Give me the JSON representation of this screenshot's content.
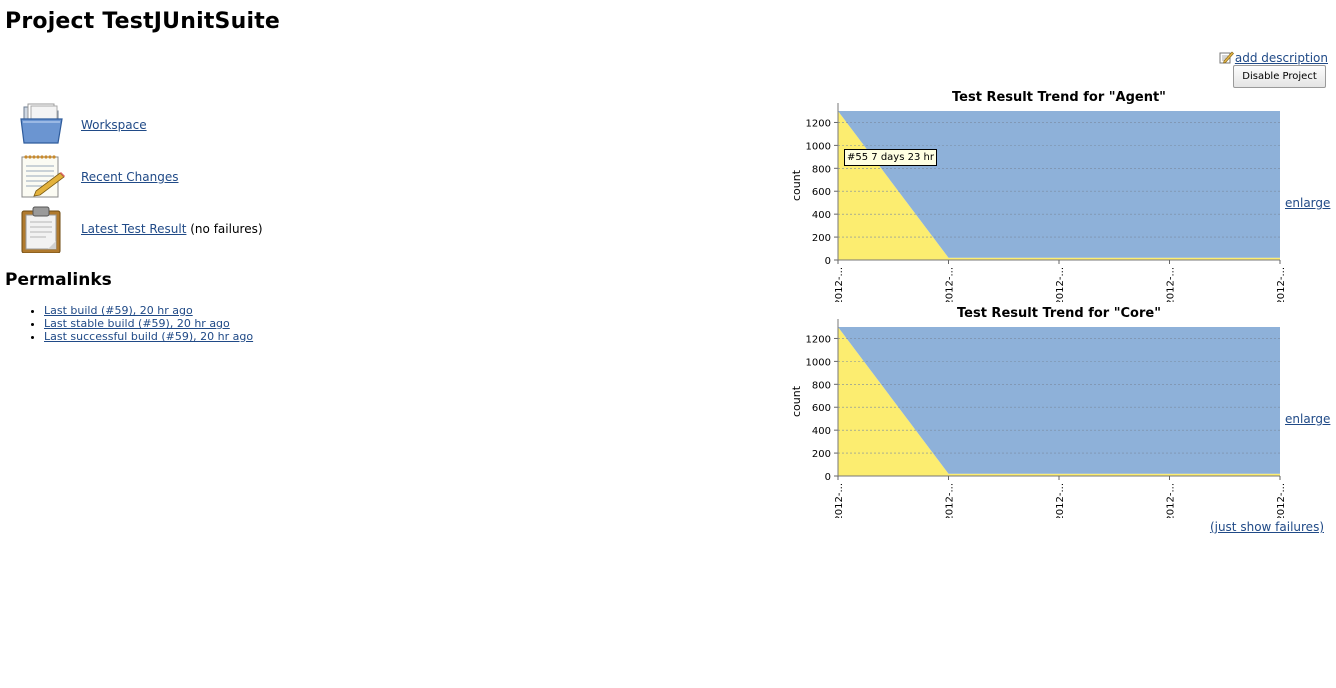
{
  "page": {
    "title": "Project TestJUnitSuite"
  },
  "top_actions": {
    "add_description_label": "add description",
    "disable_button_label": "Disable Project"
  },
  "side_links": [
    {
      "label": "Workspace",
      "icon": "folder-icon",
      "suffix": ""
    },
    {
      "label": "Recent Changes",
      "icon": "notepad-icon",
      "suffix": ""
    },
    {
      "label": "Latest Test Result",
      "icon": "clipboard-icon",
      "suffix": "(no failures)"
    }
  ],
  "permalinks": {
    "heading": "Permalinks",
    "items": [
      {
        "label": "Last build (#59), 20 hr ago"
      },
      {
        "label": "Last stable build (#59), 20 hr ago"
      },
      {
        "label": "Last successful build (#59), 20 hr ago"
      }
    ]
  },
  "colors": {
    "link": "#204a87",
    "pass_area": "#8eb1d9",
    "skip_area": "#fced70"
  },
  "charts": {
    "enlarge_label": "enlarge",
    "just_show_failures_label": "(just show failures)",
    "tooltip": "#55 7 days 23 hr"
  },
  "chart_data": [
    {
      "type": "area",
      "title": "Test Result Trend for \"Agent\"",
      "xlabel": "",
      "ylabel": "count",
      "ylim": [
        0,
        1300
      ],
      "yticks": [
        0,
        200,
        400,
        600,
        800,
        1000,
        1200
      ],
      "x_tick_labels": [
        "2012-...",
        "2012-...",
        "2012-...",
        "2012-...",
        "2012-..."
      ],
      "x_positions": [
        0,
        1,
        2,
        3,
        4
      ],
      "grid": true,
      "series": [
        {
          "color": "#fced70",
          "values": [
            1300,
            20,
            20,
            20,
            20
          ]
        },
        {
          "color": "#8eb1d9",
          "values": [
            0,
            1280,
            1280,
            1280,
            1280
          ]
        }
      ]
    },
    {
      "type": "area",
      "title": "Test Result Trend for \"Core\"",
      "xlabel": "",
      "ylabel": "count",
      "ylim": [
        0,
        1300
      ],
      "yticks": [
        0,
        200,
        400,
        600,
        800,
        1000,
        1200
      ],
      "x_tick_labels": [
        "2012-...",
        "2012-...",
        "2012-...",
        "2012-...",
        "2012-..."
      ],
      "x_positions": [
        0,
        1,
        2,
        3,
        4
      ],
      "grid": true,
      "series": [
        {
          "color": "#fced70",
          "values": [
            1300,
            20,
            20,
            20,
            20
          ]
        },
        {
          "color": "#8eb1d9",
          "values": [
            0,
            1280,
            1280,
            1280,
            1280
          ]
        }
      ]
    }
  ]
}
